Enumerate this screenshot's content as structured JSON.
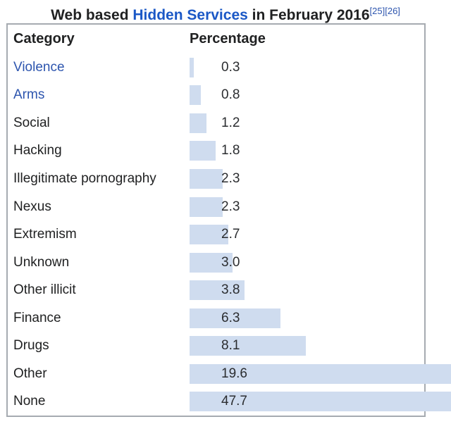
{
  "title": {
    "prefix": "Web based ",
    "link_text": "Hidden Services",
    "suffix": " in February 2016",
    "refs": [
      "[25]",
      "[26]"
    ]
  },
  "table": {
    "headers": [
      "Category",
      "Percentage"
    ],
    "rows": [
      {
        "category": "Violence",
        "is_link": true,
        "value": 0.3,
        "label": "0.3"
      },
      {
        "category": "Arms",
        "is_link": true,
        "value": 0.8,
        "label": "0.8"
      },
      {
        "category": "Social",
        "is_link": false,
        "value": 1.2,
        "label": "1.2"
      },
      {
        "category": "Hacking",
        "is_link": false,
        "value": 1.8,
        "label": "1.8"
      },
      {
        "category": "Illegitimate pornography",
        "is_link": false,
        "value": 2.3,
        "label": "2.3"
      },
      {
        "category": "Nexus",
        "is_link": false,
        "value": 2.3,
        "label": "2.3"
      },
      {
        "category": "Extremism",
        "is_link": false,
        "value": 2.7,
        "label": "2.7"
      },
      {
        "category": "Unknown",
        "is_link": false,
        "value": 3.0,
        "label": "3.0"
      },
      {
        "category": "Other illicit",
        "is_link": false,
        "value": 3.8,
        "label": "3.8"
      },
      {
        "category": "Finance",
        "is_link": false,
        "value": 6.3,
        "label": "6.3"
      },
      {
        "category": "Drugs",
        "is_link": false,
        "value": 8.1,
        "label": "8.1"
      },
      {
        "category": "Other",
        "is_link": false,
        "value": 19.6,
        "label": "19.6"
      },
      {
        "category": "None",
        "is_link": false,
        "value": 47.7,
        "label": "47.7"
      }
    ]
  },
  "chart_data": {
    "type": "bar",
    "orientation": "horizontal",
    "title": "Web based Hidden Services in February 2016",
    "categories": [
      "Violence",
      "Arms",
      "Social",
      "Hacking",
      "Illegitimate pornography",
      "Nexus",
      "Extremism",
      "Unknown",
      "Other illicit",
      "Finance",
      "Drugs",
      "Other",
      "None"
    ],
    "values": [
      0.3,
      0.8,
      1.2,
      1.8,
      2.3,
      2.3,
      2.7,
      3.0,
      3.8,
      6.3,
      8.1,
      19.6,
      47.7
    ],
    "value_labels": [
      "0.3",
      "0.8",
      "1.2",
      "1.8",
      "2.3",
      "2.3",
      "2.7",
      "3.0",
      "3.8",
      "6.3",
      "8.1",
      "19.6",
      "47.7"
    ],
    "xlabel": "Percentage",
    "ylabel": "Category",
    "grid": false,
    "legend": false,
    "notes": "Bars for Other and None overflow past the table border and are clipped at the image edge"
  },
  "colors": {
    "bar": "#cfdcef",
    "row_link": "#2d55ae",
    "title_link": "#1b58c6",
    "border": "#a6abb1",
    "text": "#202122"
  }
}
